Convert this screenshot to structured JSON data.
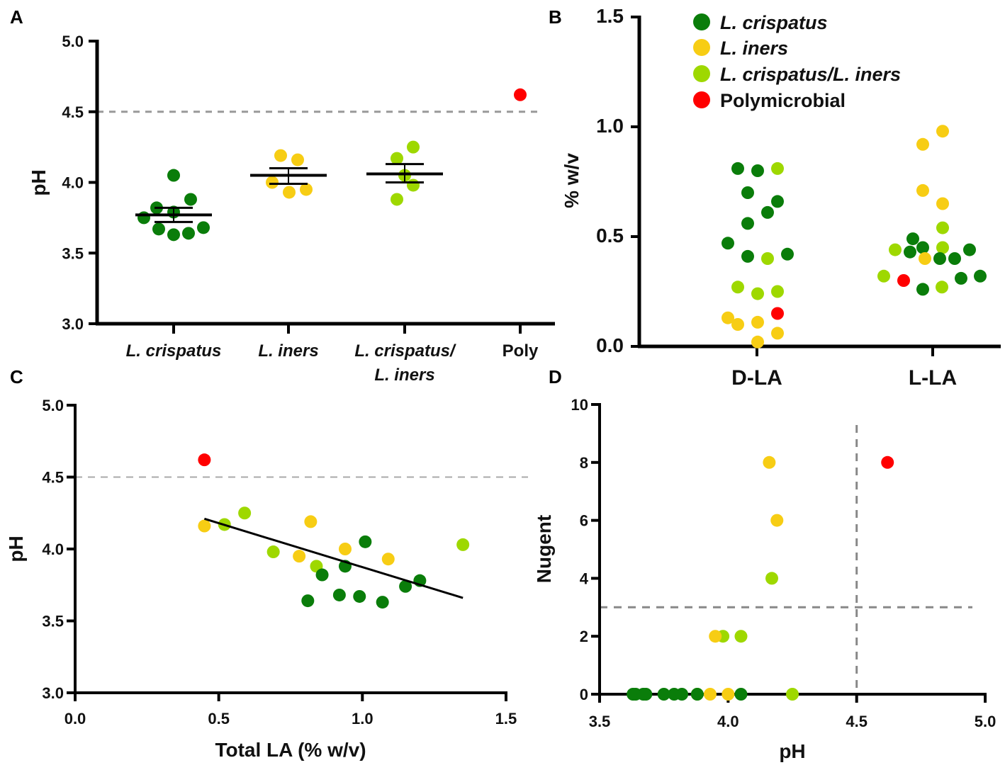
{
  "panel_labels": [
    "A",
    "B",
    "C",
    "D"
  ],
  "colors": {
    "L. crispatus": "#0a7d0a",
    "L. iners": "#f7cd14",
    "L. crispatus/L. iners": "#9ed800",
    "Polymicrobial": "#ff0000",
    "reference_line": "#999999",
    "axis": "#000000"
  },
  "legend": [
    {
      "label": "L. crispatus",
      "color": "#0a7d0a",
      "italic": true
    },
    {
      "label": "L. iners",
      "color": "#f7cd14",
      "italic": true
    },
    {
      "label": "L. crispatus/L. iners",
      "color": "#9ed800",
      "italic": true
    },
    {
      "label": "Polymicrobial",
      "color": "#ff0000",
      "italic": false
    }
  ],
  "chart_data": [
    {
      "panel": "A",
      "type": "scatter",
      "ylabel": "pH",
      "xlabel": "",
      "ylim": [
        3.0,
        5.0
      ],
      "yticks": [
        3.0,
        3.5,
        4.0,
        4.5,
        5.0
      ],
      "ytick_labels": [
        "3.0",
        "3.5",
        "4.0",
        "4.5",
        "5.0"
      ],
      "category_labels": [
        [
          "L. crispatus"
        ],
        [
          "L. iners"
        ],
        [
          "L. crispatus/",
          "L. iners"
        ],
        [
          "Poly"
        ]
      ],
      "reference_line": {
        "axis": "y",
        "value": 4.5,
        "style": "dashed"
      },
      "series": [
        {
          "group": "L. crispatus",
          "category": 0,
          "values": [
            4.05,
            3.88,
            3.82,
            3.79,
            3.75,
            3.67,
            3.68,
            3.63,
            3.64
          ],
          "mean": 3.77,
          "sem_upper": 3.82,
          "sem_lower": 3.72
        },
        {
          "group": "L. iners",
          "category": 1,
          "values": [
            4.19,
            4.16,
            4.0,
            3.93,
            3.95
          ],
          "mean": 4.05,
          "sem_upper": 4.1,
          "sem_lower": 3.99
        },
        {
          "group": "L. crispatus/L. iners",
          "category": 2,
          "values": [
            4.25,
            4.17,
            4.05,
            3.98,
            3.88
          ],
          "mean": 4.06,
          "sem_upper": 4.13,
          "sem_lower": 4.0
        },
        {
          "group": "Polymicrobial",
          "category": 3,
          "values": [
            4.62
          ]
        }
      ]
    },
    {
      "panel": "B",
      "type": "scatter",
      "ylabel": "% w/v",
      "xlabel": "",
      "ylim": [
        0.0,
        1.5
      ],
      "yticks": [
        0.0,
        0.5,
        1.0,
        1.5
      ],
      "ytick_labels": [
        "0.0",
        "0.5",
        "1.0",
        "1.5"
      ],
      "categories": [
        "D-LA",
        "L-LA"
      ],
      "legend_position": "top-right",
      "points": [
        [
          {
            "group": "L. crispatus",
            "y": 0.81
          },
          {
            "group": "L. crispatus",
            "y": 0.8
          },
          {
            "group": "L. crispatus/L. iners",
            "y": 0.81
          },
          {
            "group": "L. crispatus",
            "y": 0.7
          },
          {
            "group": "L. crispatus",
            "y": 0.66
          },
          {
            "group": "L. crispatus",
            "y": 0.61
          },
          {
            "group": "L. crispatus",
            "y": 0.56
          },
          {
            "group": "L. crispatus",
            "y": 0.47
          },
          {
            "group": "L. crispatus",
            "y": 0.41
          },
          {
            "group": "L. crispatus/L. iners",
            "y": 0.4
          },
          {
            "group": "L. crispatus",
            "y": 0.42
          },
          {
            "group": "L. crispatus/L. iners",
            "y": 0.27
          },
          {
            "group": "L. crispatus/L. iners",
            "y": 0.24
          },
          {
            "group": "L. crispatus/L. iners",
            "y": 0.25
          },
          {
            "group": "Polymicrobial",
            "y": 0.15
          },
          {
            "group": "L. iners",
            "y": 0.13
          },
          {
            "group": "L. iners",
            "y": 0.1
          },
          {
            "group": "L. iners",
            "y": 0.11
          },
          {
            "group": "L. iners",
            "y": 0.06
          },
          {
            "group": "L. iners",
            "y": 0.02
          }
        ],
        [
          {
            "group": "L. iners",
            "y": 0.98
          },
          {
            "group": "L. iners",
            "y": 0.92
          },
          {
            "group": "L. iners",
            "y": 0.71
          },
          {
            "group": "L. iners",
            "y": 0.65
          },
          {
            "group": "L. crispatus/L. iners",
            "y": 0.54
          },
          {
            "group": "L. crispatus",
            "y": 0.49
          },
          {
            "group": "L. crispatus",
            "y": 0.45
          },
          {
            "group": "L. crispatus/L. iners",
            "y": 0.45
          },
          {
            "group": "L. crispatus/L. iners",
            "y": 0.44
          },
          {
            "group": "L. crispatus",
            "y": 0.43
          },
          {
            "group": "L. crispatus",
            "y": 0.44
          },
          {
            "group": "L. iners",
            "y": 0.4
          },
          {
            "group": "L. crispatus",
            "y": 0.4
          },
          {
            "group": "L. crispatus",
            "y": 0.4
          },
          {
            "group": "L. crispatus/L. iners",
            "y": 0.32
          },
          {
            "group": "Polymicrobial",
            "y": 0.3
          },
          {
            "group": "L. crispatus",
            "y": 0.32
          },
          {
            "group": "L. crispatus",
            "y": 0.31
          },
          {
            "group": "L. crispatus/L. iners",
            "y": 0.27
          },
          {
            "group": "L. crispatus",
            "y": 0.26
          }
        ]
      ]
    },
    {
      "panel": "C",
      "type": "scatter",
      "xlabel": "Total LA (% w/v)",
      "ylabel": "pH",
      "xlim": [
        0.0,
        1.5
      ],
      "ylim": [
        3.0,
        5.0
      ],
      "xticks": [
        0.0,
        0.5,
        1.0,
        1.5
      ],
      "xtick_labels": [
        "0.0",
        "0.5",
        "1.0",
        "1.5"
      ],
      "yticks": [
        3.0,
        3.5,
        4.0,
        4.5,
        5.0
      ],
      "ytick_labels": [
        "3.0",
        "3.5",
        "4.0",
        "4.5",
        "5.0"
      ],
      "reference_line": {
        "axis": "y",
        "value": 4.5,
        "style": "dashed"
      },
      "regression_line": {
        "x": [
          0.45,
          1.35
        ],
        "y": [
          4.21,
          3.66
        ]
      },
      "points": [
        {
          "group": "Polymicrobial",
          "x": 0.45,
          "y": 4.62
        },
        {
          "group": "L. iners",
          "x": 0.45,
          "y": 4.16
        },
        {
          "group": "L. crispatus/L. iners",
          "x": 0.52,
          "y": 4.17
        },
        {
          "group": "L. crispatus/L. iners",
          "x": 0.59,
          "y": 4.25
        },
        {
          "group": "L. iners",
          "x": 0.82,
          "y": 4.19
        },
        {
          "group": "L. crispatus",
          "x": 1.01,
          "y": 4.05
        },
        {
          "group": "L. crispatus/L. iners",
          "x": 1.35,
          "y": 4.03
        },
        {
          "group": "L. iners",
          "x": 0.94,
          "y": 4.0
        },
        {
          "group": "L. crispatus/L. iners",
          "x": 0.69,
          "y": 3.98
        },
        {
          "group": "L. iners",
          "x": 0.78,
          "y": 3.95
        },
        {
          "group": "L. iners",
          "x": 1.09,
          "y": 3.93
        },
        {
          "group": "L. crispatus/L. iners",
          "x": 0.84,
          "y": 3.88
        },
        {
          "group": "L. crispatus",
          "x": 0.94,
          "y": 3.88
        },
        {
          "group": "L. crispatus",
          "x": 0.86,
          "y": 3.82
        },
        {
          "group": "L. crispatus",
          "x": 1.2,
          "y": 3.78
        },
        {
          "group": "L. crispatus",
          "x": 1.15,
          "y": 3.74
        },
        {
          "group": "L. crispatus",
          "x": 0.81,
          "y": 3.64
        },
        {
          "group": "L. crispatus",
          "x": 0.92,
          "y": 3.68
        },
        {
          "group": "L. crispatus",
          "x": 0.99,
          "y": 3.67
        },
        {
          "group": "L. crispatus",
          "x": 1.07,
          "y": 3.63
        }
      ]
    },
    {
      "panel": "D",
      "type": "scatter",
      "xlabel": "pH",
      "ylabel": "Nugent",
      "xlim": [
        3.5,
        5.0
      ],
      "ylim": [
        0,
        10
      ],
      "xticks": [
        3.5,
        4.0,
        4.5,
        5.0
      ],
      "xtick_labels": [
        "3.5",
        "4.0",
        "4.5",
        "5.0"
      ],
      "yticks": [
        0,
        2,
        4,
        6,
        8,
        10
      ],
      "ytick_labels": [
        "0",
        "2",
        "4",
        "6",
        "8",
        "10"
      ],
      "reference_lines": [
        {
          "axis": "y",
          "value": 3,
          "style": "dashed"
        },
        {
          "axis": "x",
          "value": 4.5,
          "style": "dashed"
        }
      ],
      "points": [
        {
          "group": "L. iners",
          "x": 4.16,
          "y": 8
        },
        {
          "group": "Polymicrobial",
          "x": 4.62,
          "y": 8
        },
        {
          "group": "L. iners",
          "x": 4.19,
          "y": 6
        },
        {
          "group": "L. crispatus/L. iners",
          "x": 4.17,
          "y": 4
        },
        {
          "group": "L. crispatus/L. iners",
          "x": 3.98,
          "y": 2
        },
        {
          "group": "L. iners",
          "x": 3.95,
          "y": 2
        },
        {
          "group": "L. crispatus/L. iners",
          "x": 4.05,
          "y": 2
        },
        {
          "group": "L. crispatus",
          "x": 3.63,
          "y": 0
        },
        {
          "group": "L. crispatus",
          "x": 3.64,
          "y": 0
        },
        {
          "group": "L. crispatus",
          "x": 3.67,
          "y": 0
        },
        {
          "group": "L. crispatus",
          "x": 3.68,
          "y": 0
        },
        {
          "group": "L. crispatus",
          "x": 3.75,
          "y": 0
        },
        {
          "group": "L. crispatus",
          "x": 3.79,
          "y": 0
        },
        {
          "group": "L. crispatus",
          "x": 3.82,
          "y": 0
        },
        {
          "group": "L. crispatus/L. iners",
          "x": 3.88,
          "y": 0
        },
        {
          "group": "L. crispatus",
          "x": 3.88,
          "y": 0
        },
        {
          "group": "L. iners",
          "x": 3.93,
          "y": 0
        },
        {
          "group": "L. iners",
          "x": 4.0,
          "y": 0
        },
        {
          "group": "L. crispatus",
          "x": 4.05,
          "y": 0
        },
        {
          "group": "L. crispatus/L. iners",
          "x": 4.25,
          "y": 0
        }
      ]
    }
  ]
}
